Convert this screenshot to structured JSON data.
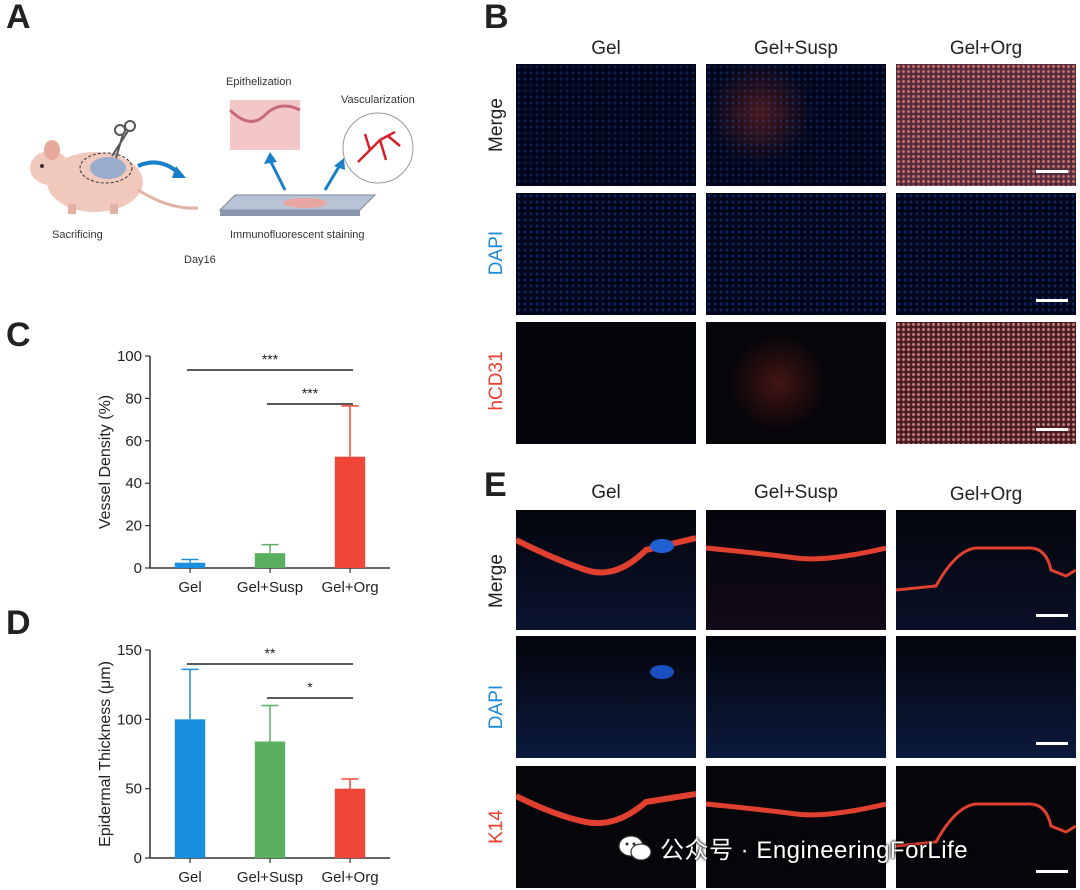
{
  "panels": {
    "A": {
      "label": "A",
      "epithelization": "Epithelization",
      "vascularization": "Vascularization",
      "sacrificing": "Sacrificing",
      "staining": "Immunofluorescent staining",
      "day": "Day16"
    },
    "B": {
      "label": "B",
      "columns": [
        "Gel",
        "Gel+Susp",
        "Gel+Org"
      ],
      "rows": [
        "Merge",
        "DAPI",
        "hCD31"
      ],
      "row_colors": [
        "#222222",
        "#1e8ad6",
        "#e8412f"
      ]
    },
    "C": {
      "label": "C"
    },
    "D": {
      "label": "D"
    },
    "E": {
      "label": "E",
      "columns": [
        "Gel",
        "Gel+Susp",
        "Gel+Org"
      ],
      "rows": [
        "Merge",
        "DAPI",
        "K14"
      ],
      "row_colors": [
        "#222222",
        "#1e8ad6",
        "#e8412f"
      ]
    }
  },
  "watermark": "公众号 · EngineeringForLife",
  "chart_data": [
    {
      "type": "bar",
      "panel": "C",
      "categories": [
        "Gel",
        "Gel+Susp",
        "Gel+Org"
      ],
      "values": [
        2.5,
        7,
        52.5
      ],
      "errors": [
        1.5,
        4,
        24
      ],
      "colors": [
        "#1a8fe0",
        "#5ab060",
        "#f0463a"
      ],
      "ylabel": "Vessel Density (%)",
      "ylim": [
        0,
        100
      ],
      "yticks": [
        0,
        20,
        40,
        60,
        80,
        100
      ],
      "significance": [
        {
          "from": "Gel",
          "to": "Gel+Org",
          "label": "***"
        },
        {
          "from": "Gel+Susp",
          "to": "Gel+Org",
          "label": "***"
        }
      ]
    },
    {
      "type": "bar",
      "panel": "D",
      "categories": [
        "Gel",
        "Gel+Susp",
        "Gel+Org"
      ],
      "values": [
        100,
        84,
        50
      ],
      "errors": [
        36,
        26,
        7
      ],
      "colors": [
        "#1a8fe0",
        "#5ab060",
        "#f0463a"
      ],
      "ylabel": "Epidermal Thickness (μm)",
      "ylim": [
        0,
        150
      ],
      "yticks": [
        0,
        50,
        100,
        150
      ],
      "significance": [
        {
          "from": "Gel",
          "to": "Gel+Org",
          "label": "**"
        },
        {
          "from": "Gel+Susp",
          "to": "Gel+Org",
          "label": "*"
        }
      ]
    }
  ]
}
